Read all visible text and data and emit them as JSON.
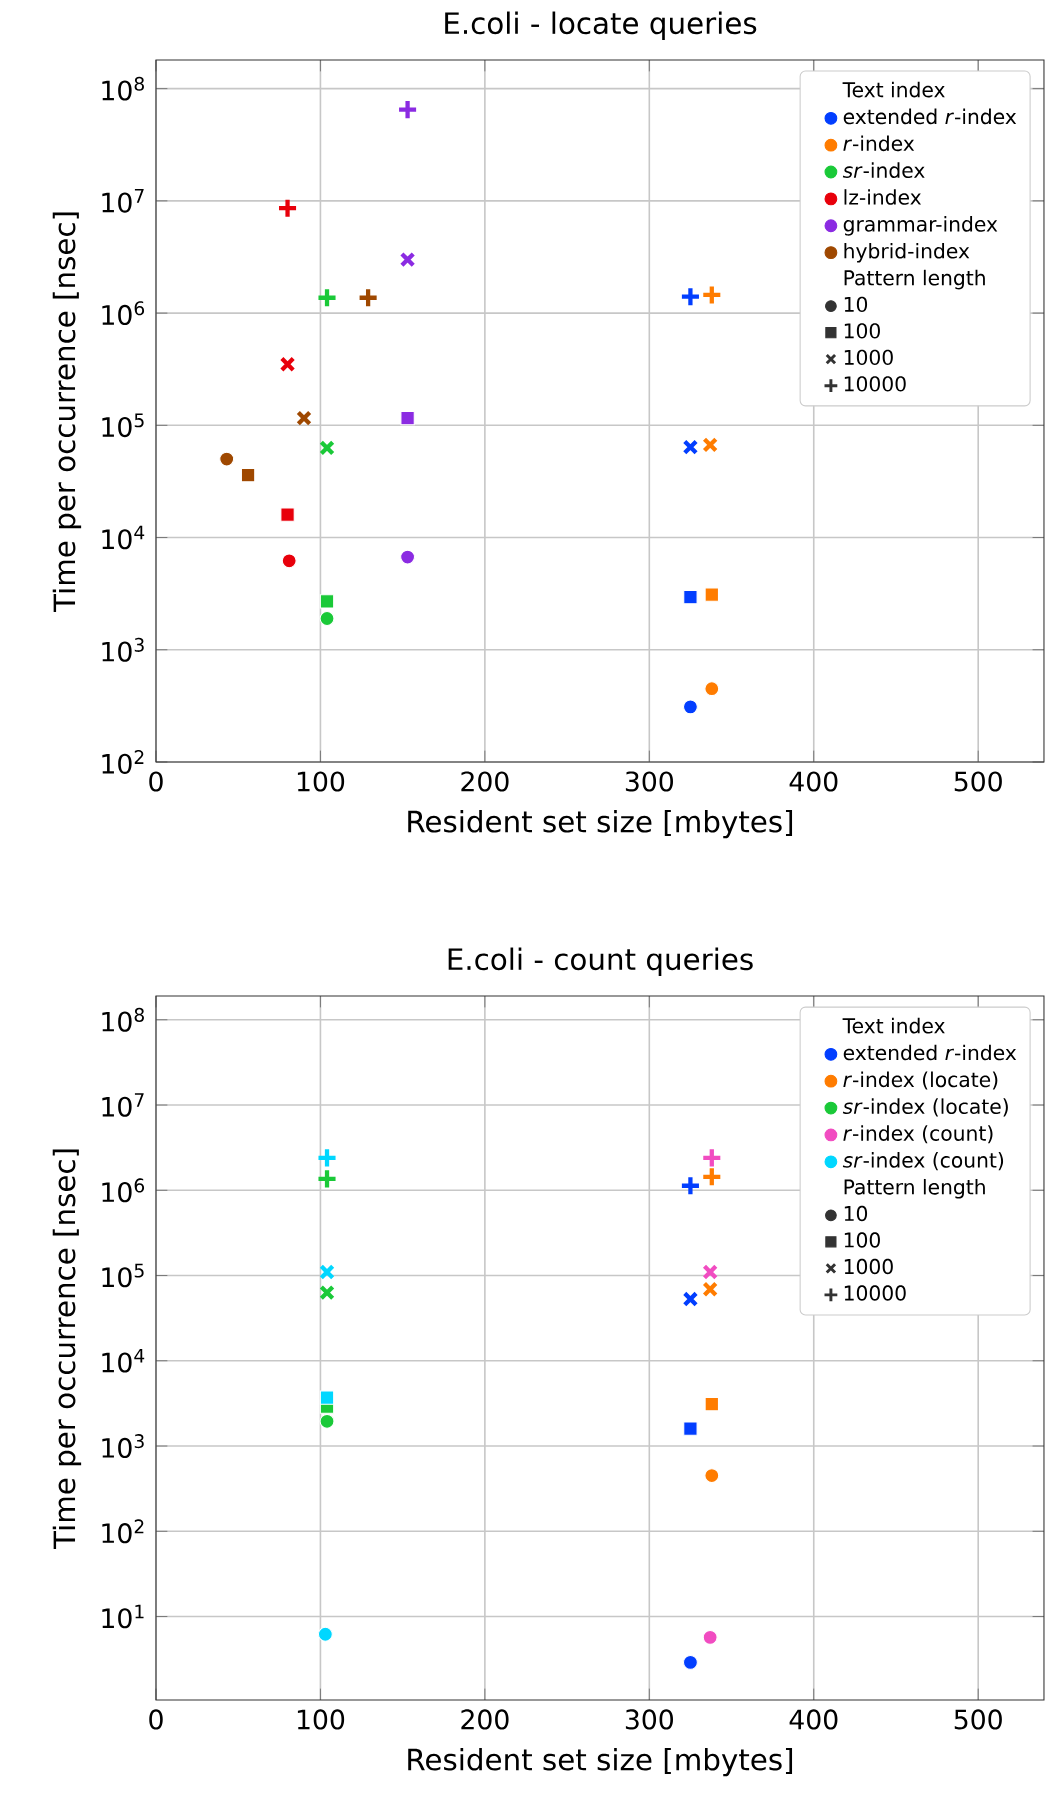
{
  "chart_data": [
    {
      "type": "scatter",
      "title": "E.coli - locate queries",
      "xlabel": "Resident set size [mbytes]",
      "ylabel": "Time per occurrence [nsec]",
      "log": "y",
      "grid": true,
      "legend": "top right",
      "legend_title": [
        "Text index",
        "Pattern length"
      ],
      "xlim": [
        0,
        540
      ],
      "xticks": [
        0,
        100,
        200,
        300,
        400,
        500
      ],
      "ylim": [
        100,
        180000000
      ],
      "yticks": [
        {
          "value": 100,
          "label": "10$^{2}$"
        },
        {
          "value": 1000,
          "label": "10$^{3}$"
        },
        {
          "value": 10000,
          "label": "10$^{4}$"
        },
        {
          "value": 100000,
          "label": "10$^{5}$"
        },
        {
          "value": 1000000,
          "label": "10$^{6}$"
        },
        {
          "value": 10000000,
          "label": "10$^{7}$"
        },
        {
          "value": 100000000,
          "label": "10$^{8}$"
        }
      ],
      "series": [
        {
          "name": "extended *r*-index",
          "color": "#023eff",
          "x": [
            325,
            325,
            325,
            325
          ],
          "values": [
            310,
            2950,
            64000,
            1400000
          ],
          "marker": [
            "circle",
            "square",
            "cross",
            "plus"
          ]
        },
        {
          "name": "*r*-index",
          "color": "#ff7c00",
          "x": [
            338,
            338,
            337,
            338
          ],
          "values": [
            450,
            3100,
            67000,
            1450000
          ],
          "marker": [
            "circle",
            "square",
            "cross",
            "plus"
          ]
        },
        {
          "name": "*sr*-index",
          "color": "#1ac938",
          "x": [
            104,
            104,
            104,
            104
          ],
          "values": [
            1900,
            2700,
            63000,
            1370000
          ],
          "marker": [
            "circle",
            "square",
            "cross",
            "plus"
          ]
        },
        {
          "name": "lz-index",
          "color": "#e8000b",
          "x": [
            81,
            80,
            80,
            80
          ],
          "values": [
            6200,
            16000,
            350000,
            8600000
          ],
          "marker": [
            "circle",
            "square",
            "cross",
            "plus"
          ]
        },
        {
          "name": "grammar-index",
          "color": "#8b2be2",
          "x": [
            153,
            153,
            153,
            153
          ],
          "values": [
            6700,
            116000,
            3000000,
            65000000
          ],
          "marker": [
            "circle",
            "square",
            "cross",
            "plus"
          ]
        },
        {
          "name": "hybrid-index",
          "color": "#9f4800",
          "x": [
            43,
            56,
            90,
            129
          ],
          "values": [
            50000,
            36000,
            116000,
            1370000
          ],
          "marker": [
            "circle",
            "square",
            "cross",
            "plus"
          ]
        },
        {
          "name": "10",
          "color": "#333333",
          "marker": "circle"
        },
        {
          "name": "100",
          "color": "#333333",
          "marker": "square"
        },
        {
          "name": "1000",
          "color": "#333333",
          "marker": "cross"
        },
        {
          "name": "10000",
          "color": "#333333",
          "marker": "plus"
        }
      ]
    },
    {
      "type": "scatter",
      "title": "E.coli - count queries",
      "xlabel": "Resident set size [mbytes]",
      "ylabel": "Time per occurrence [nsec]",
      "log": "y",
      "grid": true,
      "legend": "top right",
      "legend_title": [
        "Text index",
        "Pattern length"
      ],
      "xlim": [
        0,
        540
      ],
      "xticks": [
        0,
        100,
        200,
        300,
        400,
        500
      ],
      "ylim": [
        1.05,
        190000000
      ],
      "yticks": [
        {
          "value": 10,
          "label": "10$^{1}$"
        },
        {
          "value": 100,
          "label": "10$^{2}$"
        },
        {
          "value": 1000,
          "label": "10$^{3}$"
        },
        {
          "value": 10000,
          "label": "10$^{4}$"
        },
        {
          "value": 100000,
          "label": "10$^{5}$"
        },
        {
          "value": 1000000,
          "label": "10$^{6}$"
        },
        {
          "value": 10000000,
          "label": "10$^{7}$"
        },
        {
          "value": 100000000,
          "label": "10$^{8}$"
        }
      ],
      "series": [
        {
          "name": "extended *r*-index",
          "color": "#023eff",
          "x": [
            325,
            325,
            325,
            325
          ],
          "values": [
            2.9,
            1600,
            53000,
            1130000
          ],
          "marker": [
            "circle",
            "square",
            "cross",
            "plus"
          ]
        },
        {
          "name": "*r*-index (locate)",
          "color": "#ff7c00",
          "x": [
            338,
            338,
            337,
            338
          ],
          "values": [
            450,
            3100,
            69000,
            1440000
          ],
          "marker": [
            "circle",
            "square",
            "cross",
            "plus"
          ]
        },
        {
          "name": "*sr*-index (locate)",
          "color": "#1ac938",
          "x": [
            104,
            104,
            104,
            104
          ],
          "values": [
            1950,
            2900,
            63000,
            1360000
          ],
          "marker": [
            "circle",
            "square",
            "cross",
            "plus"
          ]
        },
        {
          "name": "*r*-index (count)",
          "color": "#f14cc1",
          "x": [
            337,
            337,
            338
          ],
          "values": [
            5.7,
            110000,
            2400000
          ],
          "marker": [
            "circle",
            "cross",
            "plus"
          ]
        },
        {
          "name": "*sr*-index (count)",
          "color": "#00d7ff",
          "x": [
            103,
            104,
            104,
            104
          ],
          "values": [
            6.2,
            3700,
            110000,
            2400000
          ],
          "marker": [
            "circle",
            "square",
            "cross",
            "plus"
          ]
        },
        {
          "name": "10",
          "color": "#333333",
          "marker": "circle"
        },
        {
          "name": "100",
          "color": "#333333",
          "marker": "square"
        },
        {
          "name": "1000",
          "color": "#333333",
          "marker": "cross"
        },
        {
          "name": "10000",
          "color": "#333333",
          "marker": "plus"
        }
      ]
    }
  ]
}
